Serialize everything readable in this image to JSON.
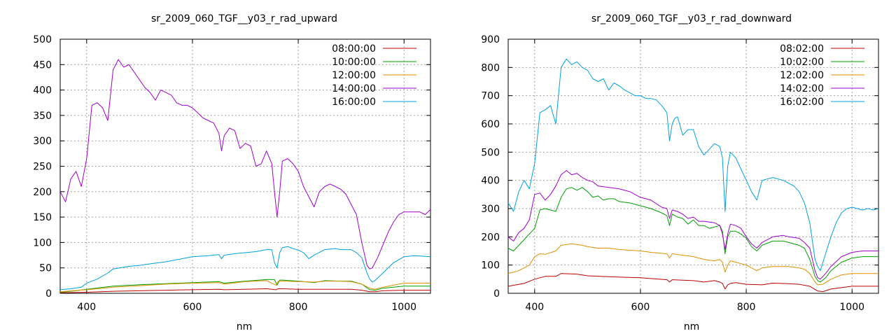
{
  "chart_data": [
    {
      "type": "line",
      "title": "sr_2009_060_TGF__y03_r_rad_upward",
      "xlabel": "nm",
      "ylabel": "",
      "xlim": [
        350,
        1050
      ],
      "ylim": [
        0,
        500
      ],
      "xticks": [
        400,
        600,
        800,
        1000
      ],
      "yticks": [
        0,
        50,
        100,
        150,
        200,
        250,
        300,
        350,
        400,
        450,
        500
      ],
      "grid": true,
      "legend_position": "top-right",
      "series": [
        {
          "name": "08:00:00",
          "color": "#c00000",
          "x": [
            350,
            400,
            450,
            500,
            550,
            600,
            650,
            660,
            700,
            740,
            758,
            762,
            770,
            800,
            830,
            850,
            880,
            900,
            920,
            935,
            945,
            960,
            1000,
            1050
          ],
          "y": [
            1,
            2,
            4,
            5,
            6,
            7,
            8,
            7,
            8,
            9,
            7,
            9,
            9,
            8,
            8,
            8,
            8,
            8,
            6,
            3,
            3,
            5,
            6,
            6
          ]
        },
        {
          "name": "10:00:00",
          "color": "#00a000",
          "x": [
            350,
            380,
            400,
            450,
            500,
            550,
            600,
            650,
            660,
            700,
            740,
            755,
            760,
            765,
            770,
            800,
            830,
            850,
            880,
            900,
            920,
            935,
            945,
            960,
            1000,
            1050
          ],
          "y": [
            2,
            5,
            8,
            14,
            17,
            19,
            21,
            23,
            20,
            24,
            27,
            27,
            16,
            26,
            26,
            24,
            21,
            25,
            24,
            24,
            18,
            7,
            6,
            10,
            14,
            14
          ]
        },
        {
          "name": "12:00:00",
          "color": "#e09000",
          "x": [
            350,
            400,
            450,
            500,
            550,
            600,
            650,
            660,
            700,
            740,
            758,
            762,
            770,
            800,
            830,
            850,
            880,
            900,
            920,
            935,
            945,
            960,
            1000,
            1050
          ],
          "y": [
            3,
            7,
            12,
            15,
            18,
            20,
            21,
            18,
            23,
            25,
            16,
            24,
            24,
            23,
            22,
            24,
            24,
            23,
            18,
            10,
            8,
            12,
            20,
            20
          ]
        },
        {
          "name": "14:00:00",
          "color": "#a000d0",
          "x": [
            350,
            360,
            370,
            380,
            390,
            400,
            410,
            420,
            430,
            440,
            450,
            460,
            470,
            480,
            490,
            500,
            510,
            520,
            530,
            540,
            550,
            560,
            570,
            580,
            590,
            600,
            620,
            640,
            650,
            655,
            660,
            670,
            680,
            690,
            700,
            710,
            720,
            730,
            740,
            750,
            755,
            760,
            765,
            770,
            780,
            790,
            800,
            810,
            820,
            830,
            840,
            850,
            860,
            870,
            880,
            890,
            900,
            910,
            920,
            930,
            935,
            940,
            950,
            960,
            970,
            980,
            990,
            1000,
            1010,
            1020,
            1030,
            1040,
            1050
          ],
          "y": [
            200,
            180,
            225,
            240,
            210,
            265,
            370,
            375,
            365,
            340,
            440,
            460,
            445,
            450,
            435,
            420,
            405,
            395,
            380,
            400,
            395,
            390,
            375,
            370,
            370,
            365,
            345,
            335,
            315,
            280,
            310,
            325,
            320,
            285,
            295,
            290,
            250,
            255,
            280,
            255,
            200,
            150,
            200,
            260,
            265,
            255,
            240,
            210,
            190,
            170,
            200,
            210,
            215,
            210,
            205,
            195,
            175,
            155,
            100,
            55,
            48,
            50,
            70,
            95,
            120,
            140,
            155,
            160,
            160,
            160,
            160,
            155,
            165
          ]
        },
        {
          "name": "16:00:00",
          "color": "#00a0e0",
          "x": [
            350,
            370,
            390,
            400,
            420,
            440,
            450,
            480,
            500,
            520,
            550,
            580,
            600,
            630,
            650,
            655,
            660,
            680,
            700,
            720,
            740,
            750,
            755,
            760,
            765,
            770,
            780,
            790,
            800,
            810,
            820,
            830,
            850,
            870,
            880,
            900,
            910,
            920,
            930,
            935,
            940,
            945,
            960,
            980,
            1000,
            1020,
            1050
          ],
          "y": [
            7,
            9,
            12,
            20,
            28,
            40,
            48,
            53,
            55,
            58,
            62,
            68,
            72,
            74,
            76,
            68,
            75,
            78,
            80,
            82,
            86,
            86,
            60,
            50,
            80,
            90,
            92,
            88,
            85,
            80,
            68,
            75,
            86,
            88,
            86,
            86,
            80,
            70,
            40,
            28,
            22,
            25,
            40,
            60,
            72,
            74,
            72
          ]
        }
      ]
    },
    {
      "type": "line",
      "title": "sr_2009_060_TGF__y03_r_rad_downward",
      "xlabel": "nm",
      "ylabel": "",
      "xlim": [
        350,
        1050
      ],
      "ylim": [
        0,
        900
      ],
      "xticks": [
        400,
        600,
        800,
        1000
      ],
      "yticks": [
        0,
        100,
        200,
        300,
        400,
        500,
        600,
        700,
        800,
        900
      ],
      "grid": true,
      "legend_position": "top-right",
      "series": [
        {
          "name": "08:02:00",
          "color": "#c00000",
          "x": [
            350,
            380,
            400,
            420,
            440,
            450,
            480,
            500,
            550,
            600,
            650,
            655,
            660,
            700,
            720,
            740,
            750,
            755,
            760,
            765,
            770,
            780,
            800,
            830,
            850,
            880,
            900,
            920,
            935,
            945,
            960,
            1000,
            1050
          ],
          "y": [
            25,
            35,
            50,
            60,
            60,
            70,
            68,
            62,
            58,
            55,
            48,
            40,
            48,
            45,
            40,
            45,
            40,
            35,
            15,
            30,
            35,
            38,
            32,
            30,
            36,
            34,
            32,
            25,
            8,
            6,
            15,
            25,
            25
          ]
        },
        {
          "name": "10:02:00",
          "color": "#00a000",
          "x": [
            350,
            360,
            380,
            400,
            410,
            420,
            440,
            450,
            460,
            470,
            480,
            490,
            500,
            510,
            520,
            530,
            540,
            550,
            560,
            580,
            600,
            620,
            640,
            650,
            655,
            660,
            670,
            680,
            690,
            700,
            710,
            720,
            730,
            740,
            750,
            755,
            760,
            765,
            770,
            780,
            790,
            800,
            810,
            820,
            830,
            850,
            870,
            880,
            900,
            910,
            920,
            930,
            935,
            940,
            950,
            960,
            980,
            1000,
            1020,
            1050
          ],
          "y": [
            160,
            150,
            190,
            230,
            295,
            300,
            290,
            340,
            370,
            375,
            365,
            375,
            360,
            340,
            345,
            330,
            335,
            335,
            325,
            320,
            310,
            300,
            285,
            275,
            240,
            280,
            270,
            265,
            245,
            260,
            240,
            240,
            230,
            235,
            240,
            220,
            140,
            200,
            220,
            220,
            210,
            195,
            165,
            150,
            170,
            185,
            185,
            180,
            170,
            160,
            120,
            60,
            45,
            40,
            55,
            80,
            110,
            125,
            130,
            130
          ]
        },
        {
          "name": "12:02:00",
          "color": "#e09000",
          "x": [
            350,
            370,
            390,
            400,
            410,
            420,
            440,
            450,
            470,
            490,
            500,
            520,
            540,
            560,
            600,
            620,
            650,
            655,
            660,
            680,
            700,
            720,
            740,
            750,
            755,
            760,
            765,
            770,
            780,
            800,
            820,
            830,
            850,
            870,
            880,
            900,
            910,
            920,
            930,
            935,
            945,
            960,
            980,
            1000,
            1050
          ],
          "y": [
            70,
            80,
            100,
            130,
            140,
            138,
            150,
            170,
            175,
            170,
            165,
            160,
            160,
            155,
            150,
            145,
            140,
            125,
            140,
            135,
            130,
            120,
            115,
            120,
            110,
            75,
            100,
            115,
            110,
            100,
            80,
            90,
            95,
            95,
            95,
            90,
            85,
            70,
            40,
            30,
            32,
            50,
            65,
            70,
            70
          ]
        },
        {
          "name": "14:02:00",
          "color": "#a000d0",
          "x": [
            350,
            360,
            370,
            380,
            390,
            400,
            410,
            420,
            430,
            440,
            450,
            460,
            470,
            480,
            490,
            500,
            510,
            520,
            540,
            560,
            580,
            600,
            620,
            640,
            650,
            655,
            660,
            670,
            680,
            690,
            700,
            710,
            720,
            740,
            750,
            755,
            760,
            765,
            770,
            780,
            790,
            800,
            810,
            820,
            830,
            850,
            870,
            880,
            900,
            910,
            920,
            930,
            935,
            940,
            950,
            960,
            980,
            1000,
            1020,
            1050
          ],
          "y": [
            200,
            185,
            215,
            230,
            260,
            350,
            355,
            330,
            350,
            380,
            420,
            435,
            420,
            425,
            410,
            400,
            395,
            380,
            375,
            370,
            360,
            340,
            330,
            305,
            300,
            265,
            295,
            290,
            280,
            265,
            270,
            255,
            255,
            250,
            240,
            210,
            155,
            210,
            245,
            240,
            230,
            200,
            175,
            160,
            180,
            200,
            205,
            200,
            195,
            180,
            160,
            80,
            55,
            50,
            70,
            95,
            130,
            145,
            150,
            150
          ]
        },
        {
          "name": "16:02:00",
          "color": "#00a0e0",
          "x": [
            350,
            360,
            370,
            380,
            390,
            400,
            410,
            420,
            430,
            440,
            450,
            460,
            470,
            480,
            490,
            500,
            510,
            520,
            530,
            540,
            550,
            560,
            570,
            580,
            590,
            600,
            610,
            620,
            630,
            640,
            650,
            655,
            660,
            665,
            670,
            680,
            690,
            700,
            710,
            720,
            730,
            740,
            750,
            755,
            760,
            765,
            770,
            780,
            790,
            800,
            810,
            820,
            830,
            840,
            850,
            860,
            870,
            880,
            890,
            900,
            910,
            920,
            930,
            935,
            940,
            950,
            960,
            970,
            980,
            990,
            1000,
            1010,
            1020,
            1030,
            1040,
            1050
          ],
          "y": [
            320,
            290,
            360,
            400,
            370,
            460,
            640,
            650,
            665,
            600,
            800,
            830,
            810,
            820,
            800,
            790,
            760,
            750,
            760,
            720,
            745,
            735,
            720,
            710,
            700,
            700,
            690,
            690,
            685,
            665,
            640,
            540,
            600,
            620,
            625,
            560,
            580,
            580,
            520,
            490,
            510,
            530,
            520,
            480,
            290,
            450,
            500,
            480,
            440,
            400,
            360,
            330,
            400,
            405,
            410,
            405,
            400,
            390,
            380,
            360,
            320,
            250,
            120,
            95,
            80,
            140,
            200,
            250,
            285,
            300,
            305,
            300,
            295,
            300,
            295,
            300
          ]
        }
      ]
    }
  ]
}
